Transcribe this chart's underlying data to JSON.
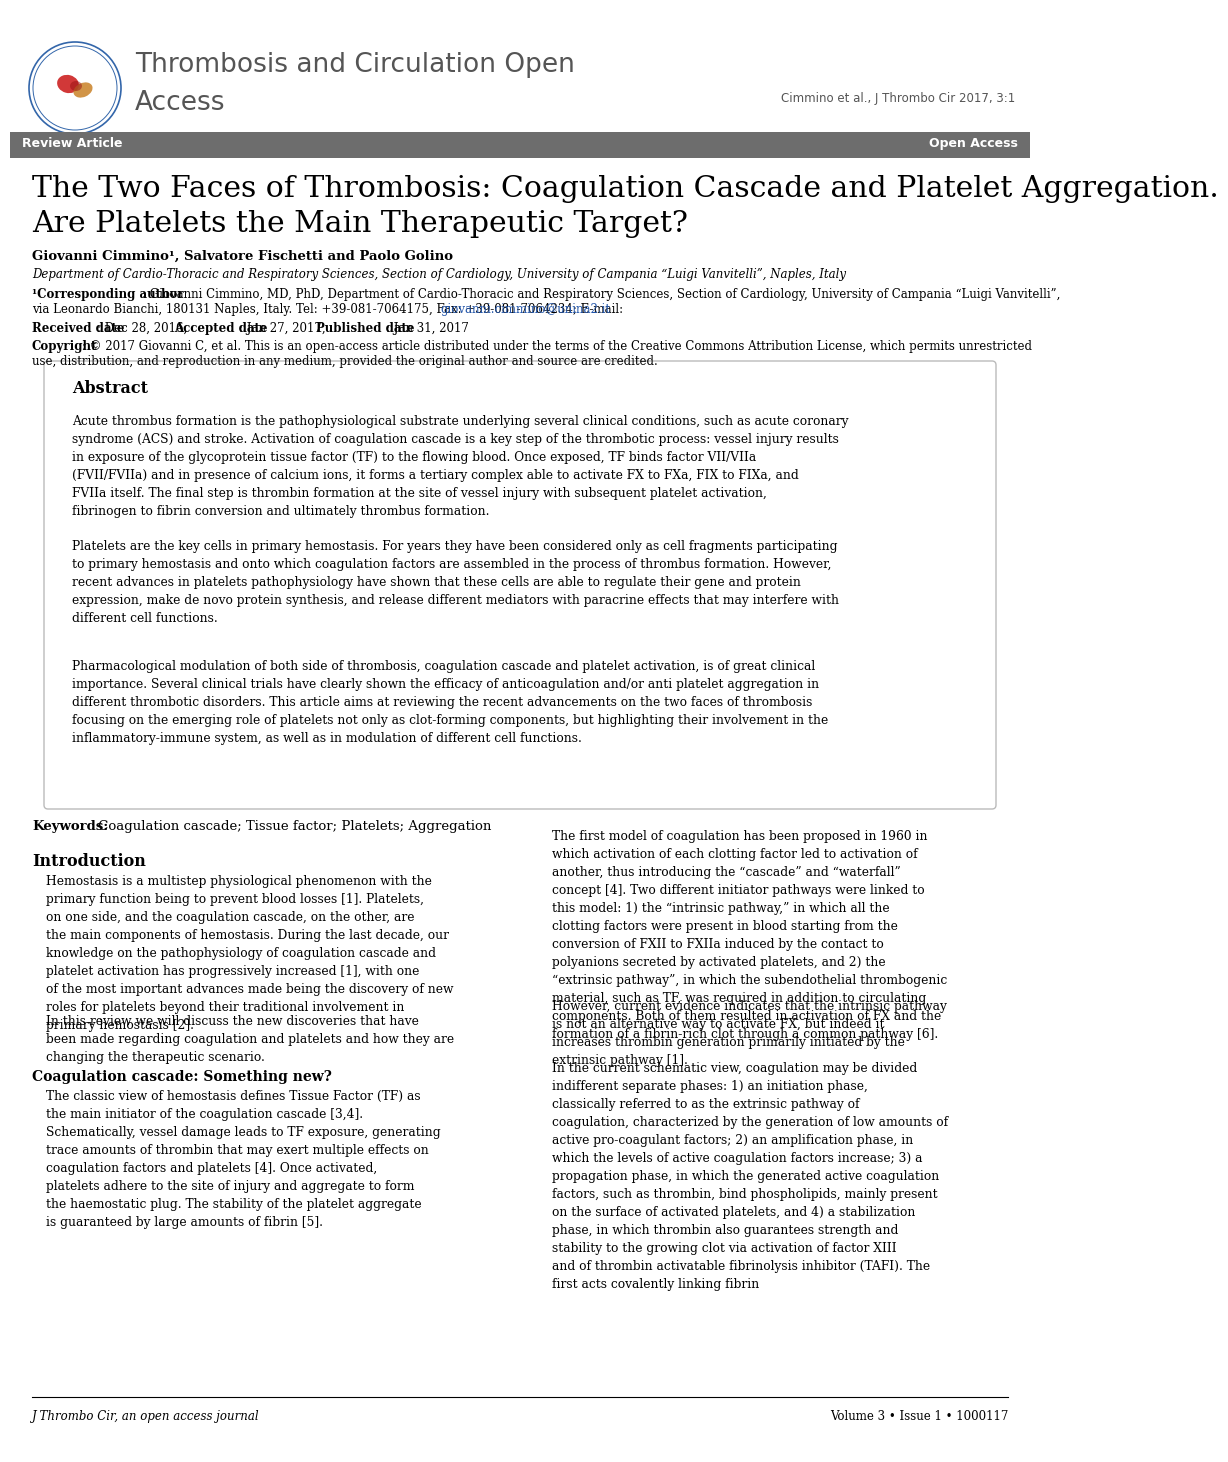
{
  "background_color": "#ffffff",
  "journal_name_line1": "Thrombosis and Circulation Open",
  "journal_name_line2": "Access",
  "journal_name_color": "#555555",
  "citation": "Cimmino et al., J Thrombo Cir 2017, 3:1",
  "citation_color": "#555555",
  "banner_bg": "#6d6d6d",
  "banner_text_left": "Review Article",
  "banner_text_right": "Open Access",
  "banner_text_color": "#ffffff",
  "article_title_line1": "The Two Faces of Thrombosis: Coagulation Cascade and Platelet Aggregation.",
  "article_title_line2": "Are Platelets the Main Therapeutic Target?",
  "article_title_color": "#000000",
  "authors": "Giovanni Cimmino¹, Salvatore Fischetti and Paolo Golino",
  "affiliation": "Department of Cardio-Thoracic and Respiratory Sciences, Section of Cardiology, University of Campania “Luigi Vanvitelli”, Naples, Italy",
  "corr_label": "¹Corresponding author",
  "corr_text_line1": ": Giovanni Cimmino, MD, PhD, Department of Cardio-Thoracic and Respiratory Sciences, Section of Cardiology, University of Campania “Luigi Vanvitelli”,",
  "corr_text_line2": "via Leonardo Bianchi, 180131 Naples, Italy. Tel: +39-081-7064175, Fax: +39-081-7064234; E-mail: ",
  "email": "giovanni.cimmino@unina2.it",
  "rec_label": "Received date",
  "rec_val": ": Dec 28, 2016, ",
  "acc_label": "Accepted date",
  "acc_val": ": Jan 27, 2017, ",
  "pub_label": "Published date",
  "pub_val": ": Jan 31, 2017",
  "copy_label": "Copyright",
  "copy_text1": ": © 2017 Giovanni C, et al. This is an open-access article distributed under the terms of the Creative Commons Attribution License, which permits unrestricted",
  "copy_text2": "use, distribution, and reproduction in any medium, provided the original author and source are credited.",
  "abstract_title": "Abstract",
  "abstract_para1": "Acute thrombus formation is the pathophysiological substrate underlying several clinical conditions, such as acute coronary syndrome (ACS) and stroke. Activation of coagulation cascade is a key step of the thrombotic process: vessel injury results in exposure of the glycoprotein tissue factor (TF) to the flowing blood. Once exposed, TF binds factor VII/VIIa (FVII/FVIIa) and in presence of calcium ions, it forms a tertiary complex able to activate FX to FXa, FIX to FIXa, and FVIIa itself. The final step is thrombin formation at the site of vessel injury with subsequent platelet activation, fibrinogen to fibrin conversion and ultimately thrombus formation.",
  "abstract_para2": "Platelets are the key cells in primary hemostasis. For years they have been considered only as cell fragments participating to primary hemostasis and onto which coagulation factors are assembled in the process of thrombus formation. However, recent advances in platelets pathophysiology have shown that these cells are able to regulate their gene and protein expression, make de novo protein synthesis, and release different mediators with paracrine effects that may interfere with different cell functions.",
  "abstract_para3": "Pharmacological modulation of both side of thrombosis, coagulation cascade and platelet activation, is of great clinical importance. Several clinical trials have clearly shown the efficacy of anticoagulation and/or anti platelet aggregation in different thrombotic disorders. This article aims at reviewing the recent advancements on the two faces of thrombosis focusing on the emerging role of platelets not only as clot-forming components, but highlighting their involvement in the inflammatory-immune system, as well as in modulation of different cell functions.",
  "keywords_label": "Keywords:",
  "keywords_text": " Coagulation cascade; Tissue factor; Platelets; Aggregation",
  "intro_title": "Introduction",
  "intro_col1_para1": "Hemostasis is a multistep physiological phenomenon with the primary function being to prevent blood losses [1]. Platelets, on one side, and the coagulation cascade, on the other, are the main components of hemostasis. During the last decade, our knowledge on the pathophysiology of coagulation cascade and platelet activation has progressively increased [1], with one of the most important advances made being the discovery of new roles for platelets beyond their traditional involvement in primary hemostasis [2].",
  "intro_col1_para2": "In this review we will discuss the new discoveries that have been made regarding coagulation and platelets and how they are changing the therapeutic scenario.",
  "coag_title": "Coagulation cascade: Something new?",
  "coag_para": "The classic view of hemostasis defines Tissue Factor (TF) as the main initiator of the coagulation cascade [3,4]. Schematically, vessel damage leads to TF exposure, generating trace amounts of thrombin that may exert multiple effects on coagulation factors and platelets [4]. Once activated, platelets adhere to the site of injury and aggregate to form the haemostatic plug. The stability of the platelet aggregate is guaranteed by large amounts of fibrin [5].",
  "intro_col2_para1": "The first model of coagulation has been proposed in 1960 in which activation of each clotting factor led to activation of another, thus introducing the “cascade” and “waterfall” concept [4]. Two different initiator pathways were linked to this model: 1) the “intrinsic pathway,” in which all the clotting factors were present in blood starting from the conversion of FXII to FXIIa induced by the contact to polyanions secreted by activated platelets, and 2) the “extrinsic pathway”, in which the subendothelial thrombogenic material, such as TF, was required in addition to circulating components. Both of them resulted in activation of FX and the formation of a fibrin-rich clot through a common pathway [6].",
  "intro_col2_para2": "However, current evidence indicates that the intrinsic pathway is not an alternative way to activate FX, but indeed it increases thrombin generation primarily initiated by the extrinsic pathway [1].",
  "intro_col2_para3": "In the current schematic view, coagulation may be divided indifferent separate phases: 1) an initiation phase, classically referred to as the extrinsic pathway of coagulation, characterized by the generation of low amounts of active pro-coagulant factors; 2) an amplification phase, in which the levels of active coagulation factors increase; 3) a propagation phase, in which the generated active coagulation factors, such as thrombin, bind phospholipids, mainly present on the surface of activated platelets, and 4) a stabilization phase, in which thrombin also guarantees strength and stability to the growing clot via activation of factor XIII and of thrombin activatable fibrinolysis inhibitor (TAFI). The first acts covalently linking fibrin",
  "footer_left": "J Thrombo Cir, an open access journal",
  "footer_right": "Volume 3 • Issue 1 • 1000117",
  "link_color": "#2255aa",
  "logo_outer_color": "#3366aa",
  "logo_red_color": "#cc2222",
  "logo_tan_color": "#cc8833"
}
